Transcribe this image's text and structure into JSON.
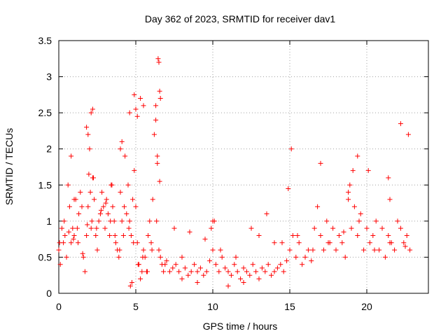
{
  "chart_data": {
    "type": "scatter",
    "title": "Day 362 of 2023, SRMTID for receiver dav1",
    "xlabel": "GPS time / hours",
    "ylabel": "SRMTID / TECUs",
    "xlim": [
      0,
      24
    ],
    "ylim": [
      0,
      3.5
    ],
    "xticks": [
      0,
      5,
      10,
      15,
      20
    ],
    "xtick_labels": [
      "0",
      "5",
      "10",
      "15",
      "20"
    ],
    "yticks": [
      0,
      0.5,
      1,
      1.5,
      2,
      2.5,
      3,
      3.5
    ],
    "ytick_labels": [
      "0",
      "0.5",
      "1",
      "1.5",
      "2",
      "2.5",
      "3",
      "3.5"
    ],
    "grid": true,
    "marker": "+",
    "color": "#ff0000",
    "series": [
      {
        "name": "SRMTID",
        "x": [
          0.0,
          0.1,
          0.2,
          0.3,
          0.4,
          0.5,
          0.6,
          0.7,
          0.8,
          0.9,
          1.0,
          1.1,
          1.2,
          1.3,
          1.4,
          1.5,
          1.6,
          1.7,
          1.8,
          1.9,
          2.0,
          2.1,
          2.2,
          2.3,
          2.4,
          2.5,
          2.6,
          2.7,
          2.8,
          2.9,
          3.0,
          3.1,
          3.2,
          3.3,
          3.4,
          3.5,
          3.6,
          3.7,
          3.8,
          3.9,
          4.0,
          4.1,
          4.2,
          4.3,
          4.4,
          4.5,
          4.6,
          4.7,
          4.8,
          4.9,
          5.0,
          5.1,
          5.2,
          5.3,
          5.4,
          5.5,
          5.6,
          5.7,
          5.8,
          5.9,
          6.0,
          6.1,
          6.2,
          6.3,
          6.4,
          6.5,
          6.6,
          6.7,
          6.8,
          6.9,
          7.0,
          7.2,
          7.4,
          7.6,
          7.8,
          8.0,
          8.2,
          8.4,
          8.6,
          8.8,
          9.0,
          9.2,
          9.4,
          9.6,
          9.8,
          10.0,
          10.2,
          10.4,
          10.6,
          10.8,
          11.0,
          11.2,
          11.4,
          11.6,
          11.8,
          12.0,
          12.2,
          12.4,
          12.6,
          12.8,
          13.0,
          13.2,
          13.4,
          13.6,
          13.8,
          14.0,
          14.2,
          14.4,
          14.6,
          14.8,
          15.0,
          15.2,
          15.4,
          15.6,
          15.8,
          16.0,
          16.2,
          16.4,
          16.6,
          16.8,
          17.0,
          17.2,
          17.4,
          17.6,
          17.8,
          18.0,
          18.2,
          18.4,
          18.6,
          18.8,
          19.0,
          19.2,
          19.4,
          19.6,
          19.8,
          20.0,
          20.2,
          20.4,
          20.6,
          20.8,
          21.0,
          21.2,
          21.4,
          21.6,
          21.8,
          22.0,
          22.2,
          22.4,
          22.6,
          22.8,
          0.05,
          0.35,
          0.65,
          0.95,
          1.25,
          1.55,
          1.85,
          2.15,
          2.45,
          2.75,
          3.05,
          3.35,
          3.65,
          3.95,
          4.25,
          4.55,
          4.85,
          5.15,
          5.45,
          5.75,
          6.05,
          6.35,
          6.45,
          6.5,
          6.55,
          6.6,
          4.9,
          5.0,
          5.1,
          2.1,
          2.2,
          1.8,
          1.9,
          4.0,
          4.1,
          4.6,
          5.3,
          5.5,
          6.3,
          6.4,
          6.55,
          0.8,
          1.0,
          10.0,
          10.1,
          9.9,
          14.9,
          15.1,
          17.0,
          18.8,
          18.9,
          19.1,
          19.4,
          20.1,
          21.4,
          21.5,
          22.2,
          22.7,
          1.95,
          2.05,
          2.25,
          3.45,
          4.65,
          4.75,
          8.0,
          9.0,
          11.0,
          12.0,
          13.0,
          14.0,
          7.5,
          8.5,
          9.5,
          10.5,
          11.5,
          12.5,
          13.5,
          14.5,
          15.5,
          16.5,
          17.5,
          18.5,
          19.5,
          20.5,
          21.5,
          22.5
        ],
        "y": [
          0.6,
          0.4,
          0.9,
          0.7,
          0.8,
          0.5,
          1.5,
          1.2,
          0.7,
          0.9,
          0.8,
          1.3,
          0.9,
          1.1,
          1.4,
          1.2,
          0.5,
          0.3,
          0.8,
          1.2,
          2.0,
          0.9,
          1.6,
          1.3,
          0.8,
          0.6,
          1.0,
          1.1,
          1.4,
          1.2,
          0.9,
          1.3,
          1.1,
          0.8,
          1.5,
          1.2,
          1.0,
          0.7,
          0.6,
          0.5,
          1.4,
          1.0,
          0.8,
          1.9,
          1.1,
          1.5,
          1.0,
          0.8,
          1.3,
          1.7,
          1.2,
          0.7,
          0.4,
          0.2,
          0.3,
          0.6,
          0.5,
          0.3,
          0.8,
          1.0,
          0.7,
          1.3,
          2.2,
          2.6,
          1.9,
          0.6,
          0.5,
          0.4,
          0.3,
          0.4,
          0.45,
          0.3,
          0.35,
          0.4,
          0.3,
          0.5,
          0.35,
          0.25,
          0.3,
          0.4,
          0.3,
          0.35,
          0.25,
          0.3,
          0.45,
          0.6,
          0.4,
          0.3,
          0.5,
          0.35,
          0.3,
          0.25,
          0.4,
          0.3,
          0.2,
          0.35,
          0.3,
          0.25,
          0.4,
          0.3,
          0.2,
          0.35,
          0.3,
          0.4,
          0.25,
          0.3,
          0.35,
          0.4,
          0.3,
          0.45,
          0.6,
          0.8,
          0.5,
          0.7,
          0.4,
          0.5,
          0.6,
          0.45,
          0.9,
          1.2,
          0.8,
          0.6,
          1.0,
          0.7,
          0.9,
          0.6,
          0.8,
          0.7,
          0.5,
          1.4,
          0.9,
          1.2,
          0.8,
          1.1,
          0.6,
          0.9,
          0.7,
          0.8,
          1.0,
          0.6,
          0.9,
          0.5,
          0.8,
          0.7,
          0.6,
          1.0,
          0.9,
          0.7,
          0.8,
          0.6,
          0.7,
          1.0,
          0.85,
          0.75,
          0.7,
          0.55,
          0.95,
          1.0,
          0.9,
          1.15,
          1.25,
          1.0,
          0.8,
          0.6,
          1.2,
          0.9,
          0.7,
          0.4,
          0.5,
          0.3,
          0.6,
          1.0,
          3.25,
          3.2,
          2.8,
          2.7,
          2.75,
          2.55,
          2.45,
          2.5,
          2.55,
          2.3,
          2.2,
          2.0,
          2.1,
          2.5,
          2.7,
          2.6,
          2.4,
          1.8,
          1.55,
          1.9,
          1.3,
          1.0,
          1.0,
          0.9,
          1.45,
          2.0,
          1.8,
          1.3,
          1.5,
          1.7,
          1.9,
          1.7,
          1.6,
          1.3,
          2.35,
          2.2,
          1.65,
          1.4,
          1.6,
          1.5,
          0.1,
          0.15,
          0.2,
          0.15,
          0.1,
          0.15,
          0.8,
          0.7,
          0.9,
          0.85,
          0.75,
          0.6,
          0.5,
          0.9,
          1.1,
          0.7,
          0.8,
          0.6,
          0.7,
          0.85,
          1.0,
          0.6,
          0.7,
          0.65
        ]
      }
    ]
  }
}
